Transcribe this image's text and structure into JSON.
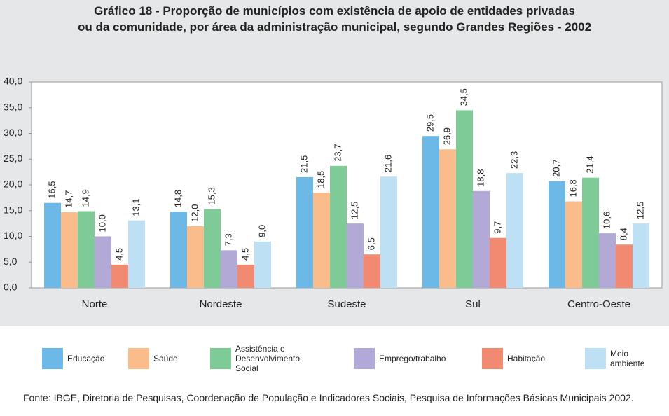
{
  "chart_data": {
    "type": "bar",
    "title": [
      "Gráfico 18 - Proporção de municípios com existência de apoio de entidades privadas",
      "ou da comunidade, por área da administração municipal, segundo Grandes Regiões - 2002"
    ],
    "categories": [
      "Norte",
      "Nordeste",
      "Sudeste",
      "Sul",
      "Centro-Oeste"
    ],
    "series": [
      {
        "name": "Educação",
        "color": "#6cb8e6",
        "values": [
          16.5,
          14.8,
          21.5,
          29.5,
          20.7
        ],
        "value_labels": [
          "16,5",
          "14,8",
          "21,5",
          "29,5",
          "20,7"
        ]
      },
      {
        "name": "Saúde",
        "color": "#f9bc8a",
        "values": [
          14.7,
          12.0,
          18.5,
          26.9,
          16.8
        ],
        "value_labels": [
          "14,7",
          "12,0",
          "18,5",
          "26,9",
          "16,8"
        ]
      },
      {
        "name": "Assistência e Desenvolvimento Social",
        "color": "#7ecb97",
        "values": [
          14.9,
          15.3,
          23.7,
          34.5,
          21.4
        ],
        "value_labels": [
          "14,9",
          "15,3",
          "23,7",
          "34,5",
          "21,4"
        ]
      },
      {
        "name": "Emprego/trabalho",
        "color": "#b3a9d6",
        "values": [
          10.0,
          7.3,
          12.5,
          18.8,
          10.6
        ],
        "value_labels": [
          "10,0",
          "7,3",
          "12,5",
          "18,8",
          "10,6"
        ]
      },
      {
        "name": "Habitação",
        "color": "#f28a72",
        "values": [
          4.5,
          4.5,
          6.5,
          9.7,
          8.4
        ],
        "value_labels": [
          "4,5",
          "4,5",
          "6,5",
          "9,7",
          "8,4"
        ]
      },
      {
        "name": "Meio ambiente",
        "color": "#bde0f5",
        "values": [
          13.1,
          9.0,
          21.6,
          22.3,
          12.5
        ],
        "value_labels": [
          "13,1",
          "9,0",
          "21,6",
          "22,3",
          "12,5"
        ]
      }
    ],
    "ylim": [
      0,
      40
    ],
    "yticks": [
      {
        "value": 0,
        "label": "0,0"
      },
      {
        "value": 5,
        "label": "5,0"
      },
      {
        "value": 10,
        "label": "10,0"
      },
      {
        "value": 15,
        "label": "15,0"
      },
      {
        "value": 20,
        "label": "20,0"
      },
      {
        "value": 25,
        "label": "25,0"
      },
      {
        "value": 30,
        "label": "30,0"
      },
      {
        "value": 35,
        "label": "35,0"
      },
      {
        "value": 40,
        "label": "40,0"
      }
    ],
    "grid": false,
    "source": "Fonte: IBGE, Diretoria de Pesquisas, Coordenação de População e Indicadores Sociais, Pesquisa de Informações Básicas Municipais 2002."
  }
}
